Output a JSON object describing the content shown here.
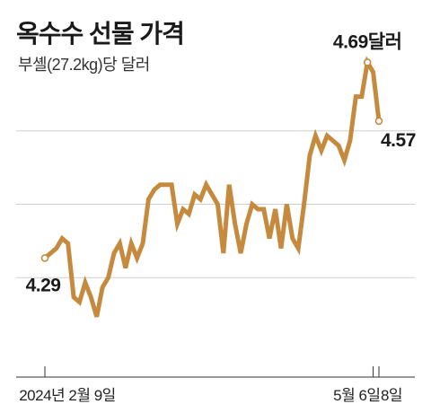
{
  "chart_data": {
    "type": "line",
    "title": "옥수수 선물 가격",
    "subtitle": "부셸(27.2kg)당 달러",
    "x_tick_labels": [
      "2024년 2월 9일",
      "5월 6일",
      "8일"
    ],
    "annotations": [
      {
        "label": "4.29",
        "point": "first"
      },
      {
        "label": "4.69달러",
        "point": "peak"
      },
      {
        "label": "4.57",
        "point": "last"
      }
    ],
    "gridlines": [
      4.25,
      4.4,
      4.55
    ],
    "ylim": [
      4.1,
      4.7
    ],
    "line_color": "#c68a3e",
    "series": [
      {
        "values": [
          4.29,
          4.3,
          4.31,
          4.33,
          4.32,
          4.21,
          4.2,
          4.24,
          4.21,
          4.17,
          4.23,
          4.25,
          4.3,
          4.32,
          4.27,
          4.32,
          4.29,
          4.32,
          4.41,
          4.43,
          4.44,
          4.44,
          4.44,
          4.36,
          4.39,
          4.38,
          4.42,
          4.41,
          4.44,
          4.42,
          4.4,
          4.3,
          4.44,
          4.36,
          4.3,
          4.36,
          4.4,
          4.39,
          4.39,
          4.33,
          4.39,
          4.31,
          4.4,
          4.33,
          4.31,
          4.4,
          4.5,
          4.54,
          4.51,
          4.54,
          4.53,
          4.52,
          4.49,
          4.53,
          4.62,
          4.62,
          4.69,
          4.67,
          4.57
        ]
      }
    ]
  }
}
